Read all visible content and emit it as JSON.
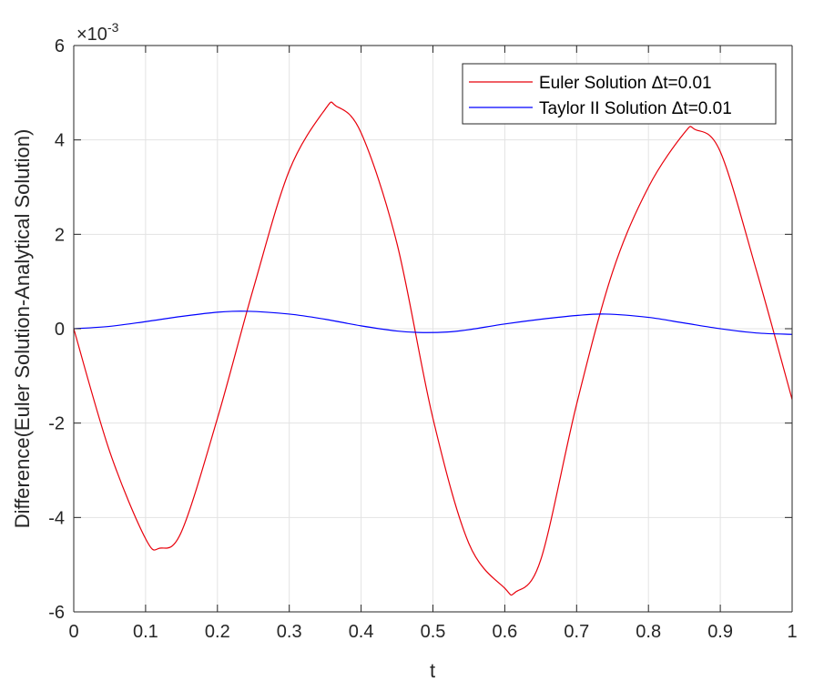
{
  "chart_data": {
    "type": "line",
    "title": "",
    "xlabel": "t",
    "ylabel": "Difference(Euler Solution-Analytical Solution)",
    "xlim": [
      0,
      1
    ],
    "ylim": [
      -6,
      6
    ],
    "y_exponent_label": {
      "base": "×10",
      "power": "-3"
    },
    "xticks": [
      0,
      0.1,
      0.2,
      0.3,
      0.4,
      0.5,
      0.6,
      0.7,
      0.8,
      0.9,
      1
    ],
    "xtick_labels": [
      "0",
      "0.1",
      "0.2",
      "0.3",
      "0.4",
      "0.5",
      "0.6",
      "0.7",
      "0.8",
      "0.9",
      "1"
    ],
    "yticks": [
      -6,
      -4,
      -2,
      0,
      2,
      4,
      6
    ],
    "ytick_labels": [
      "-6",
      "-4",
      "-2",
      "0",
      "2",
      "4",
      "6"
    ],
    "grid": true,
    "legend_position": "top-right",
    "series": [
      {
        "name": "Euler Solution Δt=0.01",
        "color": "#e8000b",
        "points": [
          [
            0,
            0
          ],
          [
            0.05,
            -2.6
          ],
          [
            0.1,
            -4.45
          ],
          [
            0.12,
            -4.65
          ],
          [
            0.15,
            -4.3
          ],
          [
            0.2,
            -1.9
          ],
          [
            0.25,
            0.85
          ],
          [
            0.3,
            3.35
          ],
          [
            0.35,
            4.65
          ],
          [
            0.365,
            4.72
          ],
          [
            0.4,
            4.15
          ],
          [
            0.45,
            1.8
          ],
          [
            0.5,
            -1.9
          ],
          [
            0.55,
            -4.55
          ],
          [
            0.6,
            -5.5
          ],
          [
            0.615,
            -5.58
          ],
          [
            0.65,
            -4.9
          ],
          [
            0.7,
            -1.6
          ],
          [
            0.75,
            1.2
          ],
          [
            0.8,
            3.0
          ],
          [
            0.85,
            4.15
          ],
          [
            0.865,
            4.22
          ],
          [
            0.9,
            3.75
          ],
          [
            0.95,
            1.25
          ],
          [
            1.0,
            -1.5
          ]
        ]
      },
      {
        "name": "Taylor II Solution Δt=0.01",
        "color": "#0000ff",
        "points": [
          [
            0,
            0
          ],
          [
            0.05,
            0.05
          ],
          [
            0.1,
            0.15
          ],
          [
            0.15,
            0.26
          ],
          [
            0.2,
            0.35
          ],
          [
            0.24,
            0.37
          ],
          [
            0.3,
            0.31
          ],
          [
            0.35,
            0.2
          ],
          [
            0.4,
            0.06
          ],
          [
            0.45,
            -0.05
          ],
          [
            0.48,
            -0.08
          ],
          [
            0.52,
            -0.07
          ],
          [
            0.55,
            -0.02
          ],
          [
            0.6,
            0.1
          ],
          [
            0.65,
            0.2
          ],
          [
            0.7,
            0.28
          ],
          [
            0.74,
            0.31
          ],
          [
            0.8,
            0.24
          ],
          [
            0.85,
            0.12
          ],
          [
            0.9,
            0.0
          ],
          [
            0.95,
            -0.09
          ],
          [
            1.0,
            -0.12
          ]
        ]
      }
    ]
  }
}
